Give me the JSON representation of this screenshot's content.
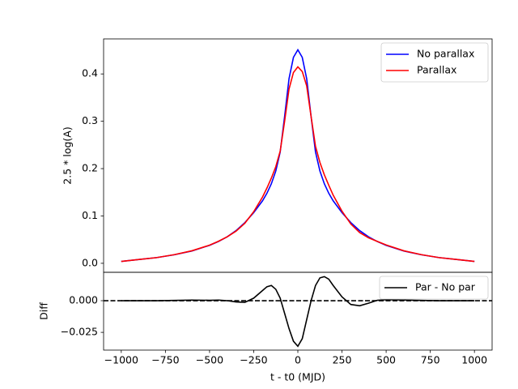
{
  "chart_data": [
    {
      "type": "line",
      "ylabel": "2.5 * log(A)",
      "legend": "upper right",
      "xlim": [
        -1100,
        1100
      ],
      "ylim": [
        -0.019,
        0.474
      ],
      "yticks": [
        {
          "value": 0,
          "label": "0.0"
        },
        0.1,
        0.2,
        0.3,
        0.4
      ],
      "x": [
        -1000,
        -900,
        -800,
        -700,
        -600,
        -500,
        -450,
        -400,
        -350,
        -300,
        -250,
        -200,
        -175,
        -150,
        -125,
        -100,
        -75,
        -50,
        -25,
        0,
        25,
        50,
        75,
        100,
        125,
        150,
        175,
        200,
        250,
        300,
        350,
        400,
        450,
        500,
        600,
        700,
        800,
        900,
        1000
      ],
      "series": [
        {
          "name": "No parallax",
          "color": "#0000ff",
          "values": [
            0.004,
            0.008,
            0.012,
            0.018,
            0.026,
            0.038,
            0.046,
            0.056,
            0.069,
            0.086,
            0.107,
            0.132,
            0.148,
            0.168,
            0.195,
            0.235,
            0.31,
            0.39,
            0.435,
            0.451,
            0.435,
            0.39,
            0.31,
            0.235,
            0.195,
            0.168,
            0.148,
            0.132,
            0.107,
            0.086,
            0.069,
            0.056,
            0.046,
            0.038,
            0.026,
            0.018,
            0.012,
            0.008,
            0.004
          ]
        },
        {
          "name": "Parallax",
          "color": "#ff0000",
          "values": [
            0.004,
            0.008,
            0.012,
            0.0182,
            0.0265,
            0.0383,
            0.0465,
            0.056,
            0.068,
            0.0847,
            0.109,
            0.14,
            0.159,
            0.18,
            0.204,
            0.237,
            0.3,
            0.368,
            0.403,
            0.415,
            0.405,
            0.375,
            0.31,
            0.247,
            0.213,
            0.187,
            0.165,
            0.144,
            0.11,
            0.083,
            0.065,
            0.054,
            0.0463,
            0.0388,
            0.0265,
            0.0182,
            0.012,
            0.008,
            0.004
          ]
        }
      ]
    },
    {
      "type": "line",
      "ylabel": "Diff",
      "xlabel": "t - t0 (MJD)",
      "legend": "upper right",
      "hline": 0,
      "xlim": [
        -1100,
        1100
      ],
      "ylim": [
        -0.039,
        0.0224
      ],
      "xticks": [
        {
          "value": -1000,
          "label": "−1000"
        },
        {
          "value": -750,
          "label": "−750"
        },
        {
          "value": -500,
          "label": "−500"
        },
        {
          "value": -250,
          "label": "−250"
        },
        0,
        250,
        500,
        750,
        1000
      ],
      "yticks": [
        {
          "value": -0.025,
          "label": "−0.025"
        },
        {
          "value": 0,
          "label": "0.000"
        }
      ],
      "x": [
        -1000,
        -900,
        -800,
        -700,
        -600,
        -500,
        -450,
        -400,
        -350,
        -300,
        -250,
        -200,
        -175,
        -150,
        -125,
        -100,
        -75,
        -50,
        -25,
        0,
        25,
        50,
        75,
        100,
        125,
        150,
        175,
        200,
        250,
        300,
        350,
        400,
        450,
        500,
        600,
        700,
        800,
        900,
        1000
      ],
      "series": [
        {
          "name": "Par - No par",
          "color": "#000000",
          "values": [
            0,
            0,
            0,
            0.0002,
            0.0005,
            0.0003,
            0.0005,
            0,
            -0.001,
            -0.0013,
            0.002,
            0.008,
            0.011,
            0.012,
            0.009,
            0.002,
            -0.01,
            -0.022,
            -0.032,
            -0.036,
            -0.03,
            -0.015,
            0,
            0.012,
            0.018,
            0.019,
            0.017,
            0.012,
            0.003,
            -0.003,
            -0.004,
            -0.002,
            0.0003,
            0.0008,
            0.0005,
            0.0002,
            0,
            0,
            0
          ]
        }
      ]
    }
  ]
}
